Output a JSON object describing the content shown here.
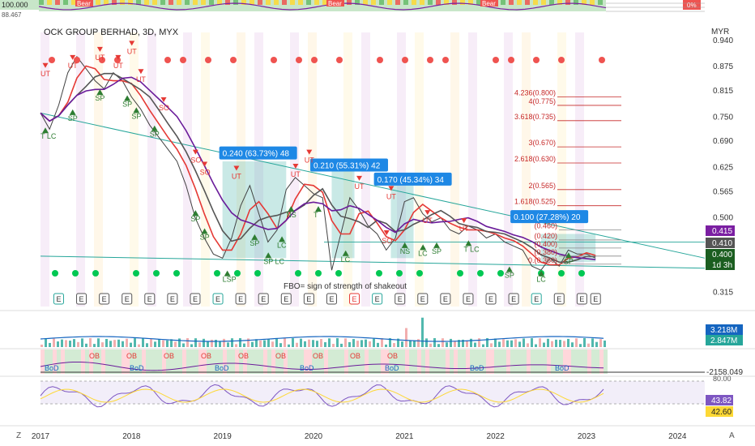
{
  "chart_data": {
    "type": "line",
    "title": "OCK GROUP BERHAD, 3D, MYX",
    "currency": "MYR",
    "note": "FBO= sign of strength of shakeout",
    "xlabels": [
      "2017",
      "2018",
      "2019",
      "2020",
      "2021",
      "2022",
      "2023",
      "2024"
    ],
    "price_ticks": [
      "0.940",
      "0.875",
      "0.815",
      "0.750",
      "0.690",
      "0.625",
      "0.565",
      "0.500",
      "0.315"
    ],
    "price_badges": [
      {
        "text": "0.415",
        "color": "#7b1fa2"
      },
      {
        "text": "0.410",
        "color": "#555555"
      },
      {
        "text": "0.400",
        "color": "#1b5e20"
      },
      {
        "text": "1d 3h",
        "color": "#1b5e20"
      }
    ],
    "price_series": [
      {
        "t": 2017.0,
        "p": 0.76
      },
      {
        "t": 2017.1,
        "p": 0.72
      },
      {
        "t": 2017.2,
        "p": 0.78
      },
      {
        "t": 2017.3,
        "p": 0.86
      },
      {
        "t": 2017.4,
        "p": 0.9
      },
      {
        "t": 2017.5,
        "p": 0.87
      },
      {
        "t": 2017.6,
        "p": 0.84
      },
      {
        "t": 2017.7,
        "p": 0.82
      },
      {
        "t": 2017.8,
        "p": 0.86
      },
      {
        "t": 2017.9,
        "p": 0.84
      },
      {
        "t": 2018.0,
        "p": 0.8
      },
      {
        "t": 2018.1,
        "p": 0.77
      },
      {
        "t": 2018.2,
        "p": 0.73
      },
      {
        "t": 2018.3,
        "p": 0.7
      },
      {
        "t": 2018.4,
        "p": 0.67
      },
      {
        "t": 2018.5,
        "p": 0.64
      },
      {
        "t": 2018.6,
        "p": 0.58
      },
      {
        "t": 2018.7,
        "p": 0.5
      },
      {
        "t": 2018.8,
        "p": 0.45
      },
      {
        "t": 2018.9,
        "p": 0.41
      },
      {
        "t": 2019.0,
        "p": 0.4
      },
      {
        "t": 2019.1,
        "p": 0.45
      },
      {
        "t": 2019.2,
        "p": 0.53
      },
      {
        "t": 2019.3,
        "p": 0.58
      },
      {
        "t": 2019.4,
        "p": 0.51
      },
      {
        "t": 2019.5,
        "p": 0.44
      },
      {
        "t": 2019.6,
        "p": 0.47
      },
      {
        "t": 2019.7,
        "p": 0.57
      },
      {
        "t": 2019.8,
        "p": 0.6
      },
      {
        "t": 2019.9,
        "p": 0.58
      },
      {
        "t": 2020.0,
        "p": 0.56
      },
      {
        "t": 2020.1,
        "p": 0.55
      },
      {
        "t": 2020.2,
        "p": 0.37
      },
      {
        "t": 2020.3,
        "p": 0.46
      },
      {
        "t": 2020.4,
        "p": 0.55
      },
      {
        "t": 2020.5,
        "p": 0.52
      },
      {
        "t": 2020.6,
        "p": 0.48
      },
      {
        "t": 2020.7,
        "p": 0.46
      },
      {
        "t": 2020.8,
        "p": 0.42
      },
      {
        "t": 2020.9,
        "p": 0.45
      },
      {
        "t": 2021.0,
        "p": 0.54
      },
      {
        "t": 2021.1,
        "p": 0.55
      },
      {
        "t": 2021.2,
        "p": 0.51
      },
      {
        "t": 2021.3,
        "p": 0.49
      },
      {
        "t": 2021.4,
        "p": 0.5
      },
      {
        "t": 2021.5,
        "p": 0.47
      },
      {
        "t": 2021.6,
        "p": 0.46
      },
      {
        "t": 2021.7,
        "p": 0.48
      },
      {
        "t": 2021.8,
        "p": 0.47
      },
      {
        "t": 2021.9,
        "p": 0.45
      },
      {
        "t": 2022.0,
        "p": 0.46
      },
      {
        "t": 2022.1,
        "p": 0.44
      },
      {
        "t": 2022.2,
        "p": 0.43
      },
      {
        "t": 2022.3,
        "p": 0.42
      },
      {
        "t": 2022.4,
        "p": 0.38
      },
      {
        "t": 2022.5,
        "p": 0.37
      },
      {
        "t": 2022.6,
        "p": 0.4
      },
      {
        "t": 2022.7,
        "p": 0.38
      },
      {
        "t": 2022.8,
        "p": 0.42
      },
      {
        "t": 2022.9,
        "p": 0.41
      },
      {
        "t": 2023.0,
        "p": 0.41
      },
      {
        "t": 2023.1,
        "p": 0.4
      }
    ],
    "gain_labels": [
      {
        "text": "0.240 (63.73%) 48",
        "t": 2019.0,
        "p": 0.655
      },
      {
        "text": "0.210 (55.31%) 42",
        "t": 2020.0,
        "p": 0.625
      },
      {
        "text": "0.170 (45.34%) 34",
        "t": 2020.7,
        "p": 0.59
      },
      {
        "text": "0.100 (27.28%) 20",
        "t": 2022.2,
        "p": 0.497
      }
    ],
    "fib_levels": [
      {
        "text": "4.236(0.800)",
        "p": 0.8
      },
      {
        "text": "4(0.775)",
        "p": 0.779
      },
      {
        "text": "3.618(0.735)",
        "p": 0.741
      },
      {
        "text": "3(0.670)",
        "p": 0.676
      },
      {
        "text": "2.618(0.630)",
        "p": 0.636
      },
      {
        "text": "2(0.565)",
        "p": 0.57
      },
      {
        "text": "1.618(0.525)",
        "p": 0.53
      },
      {
        "text": "(0.460)",
        "p": 0.47
      },
      {
        "text": "(0.420)",
        "p": 0.445
      },
      {
        "text": "(0.400)",
        "p": 0.425
      },
      {
        "text": "(0.380)",
        "p": 0.405
      },
      {
        "text": "0.(0.360)",
        "p": 0.385
      }
    ],
    "signal_labels": [
      {
        "text": "UT",
        "t": 2017.0,
        "p": 0.88,
        "kind": "sell"
      },
      {
        "text": "UT",
        "t": 2017.3,
        "p": 0.9,
        "kind": "sell"
      },
      {
        "text": "UT",
        "t": 2017.6,
        "p": 0.92,
        "kind": "sell"
      },
      {
        "text": "UT",
        "t": 2017.8,
        "p": 0.9,
        "kind": "sell"
      },
      {
        "text": "UT",
        "t": 2017.95,
        "p": 0.935,
        "kind": "sell"
      },
      {
        "text": "UT",
        "t": 2018.05,
        "p": 0.865,
        "kind": "sell"
      },
      {
        "text": "SO",
        "t": 2018.3,
        "p": 0.795,
        "kind": "sell"
      },
      {
        "text": "SO",
        "t": 2018.65,
        "p": 0.665,
        "kind": "sell"
      },
      {
        "text": "SO",
        "t": 2018.75,
        "p": 0.635,
        "kind": "sell"
      },
      {
        "text": "UT",
        "t": 2019.1,
        "p": 0.625,
        "kind": "sell"
      },
      {
        "text": "UT",
        "t": 2019.75,
        "p": 0.63,
        "kind": "sell"
      },
      {
        "text": "UT",
        "t": 2019.9,
        "p": 0.665,
        "kind": "sell"
      },
      {
        "text": "UT",
        "t": 2020.45,
        "p": 0.6,
        "kind": "sell"
      },
      {
        "text": "UT",
        "t": 2020.8,
        "p": 0.575,
        "kind": "sell"
      },
      {
        "text": "UT",
        "t": 2021.2,
        "p": 0.515,
        "kind": "sell"
      },
      {
        "text": "UT",
        "t": 2021.6,
        "p": 0.495,
        "kind": "sell"
      },
      {
        "text": "SO",
        "t": 2020.75,
        "p": 0.465,
        "kind": "sell"
      },
      {
        "text": "T LC",
        "t": 2017.0,
        "p": 0.7,
        "kind": "buy"
      },
      {
        "text": "SP",
        "t": 2017.3,
        "p": 0.745,
        "kind": "buy"
      },
      {
        "text": "SP",
        "t": 2017.6,
        "p": 0.795,
        "kind": "buy"
      },
      {
        "text": "SP",
        "t": 2017.9,
        "p": 0.78,
        "kind": "buy"
      },
      {
        "text": "SP",
        "t": 2018.0,
        "p": 0.75,
        "kind": "buy"
      },
      {
        "text": "SP",
        "t": 2018.2,
        "p": 0.705,
        "kind": "buy"
      },
      {
        "text": "SP",
        "t": 2018.65,
        "p": 0.495,
        "kind": "buy"
      },
      {
        "text": "SP",
        "t": 2018.75,
        "p": 0.45,
        "kind": "buy"
      },
      {
        "text": "LSP",
        "t": 2019.0,
        "p": 0.345,
        "kind": "buy"
      },
      {
        "text": "SP LC",
        "t": 2019.45,
        "p": 0.39,
        "kind": "buy"
      },
      {
        "text": "LC",
        "t": 2019.6,
        "p": 0.43,
        "kind": "buy"
      },
      {
        "text": "SP",
        "t": 2019.3,
        "p": 0.435,
        "kind": "buy"
      },
      {
        "text": "NS",
        "t": 2019.7,
        "p": 0.505,
        "kind": "buy"
      },
      {
        "text": "T",
        "t": 2020.0,
        "p": 0.505,
        "kind": "buy"
      },
      {
        "text": "LC",
        "t": 2020.3,
        "p": 0.395,
        "kind": "buy"
      },
      {
        "text": "NS",
        "t": 2020.95,
        "p": 0.415,
        "kind": "buy"
      },
      {
        "text": "LC",
        "t": 2021.15,
        "p": 0.41,
        "kind": "buy"
      },
      {
        "text": "SP",
        "t": 2021.3,
        "p": 0.415,
        "kind": "buy"
      },
      {
        "text": "T LC",
        "t": 2021.65,
        "p": 0.42,
        "kind": "buy"
      },
      {
        "text": "SP",
        "t": 2022.1,
        "p": 0.355,
        "kind": "buy"
      },
      {
        "text": "LC",
        "t": 2022.45,
        "p": 0.345,
        "kind": "buy"
      },
      {
        "text": "SP",
        "t": 2022.75,
        "p": 0.39,
        "kind": "buy"
      }
    ],
    "earnings_marks": [
      2017.2,
      2017.45,
      2017.7,
      2017.95,
      2018.2,
      2018.45,
      2018.7,
      2018.95,
      2019.2,
      2019.45,
      2019.7,
      2019.95,
      2020.2,
      2020.45,
      2020.7,
      2020.95,
      2021.2,
      2021.45,
      2021.7,
      2021.95,
      2022.2,
      2022.45,
      2022.7,
      2022.95,
      2023.1
    ],
    "top_indicator": {
      "left_values": [
        "100.000",
        "88.467"
      ],
      "bear_labels": [
        "Bear",
        "Bear",
        "Bear"
      ],
      "right_badge": "0%"
    },
    "volume": {
      "badges": [
        {
          "text": "3.218M",
          "color": "#1565c0"
        },
        {
          "text": "2.847M",
          "color": "#26a69a"
        }
      ]
    },
    "flow": {
      "badge": "-2158.049",
      "labels": [
        "OB",
        "OB",
        "OB",
        "OB",
        "OB",
        "OB",
        "OB",
        "OB",
        "OB",
        "BoD",
        "BoD",
        "BoD",
        "BoD",
        "BoD",
        "BoD",
        "BoD"
      ]
    },
    "rsi": {
      "ticks": [
        "80.00"
      ],
      "badges": [
        {
          "text": "43.82",
          "color": "#7e57c2"
        },
        {
          "text": "42.60",
          "color": "#fdd835"
        }
      ]
    }
  },
  "corner": {
    "left": "Z",
    "right": "A"
  }
}
